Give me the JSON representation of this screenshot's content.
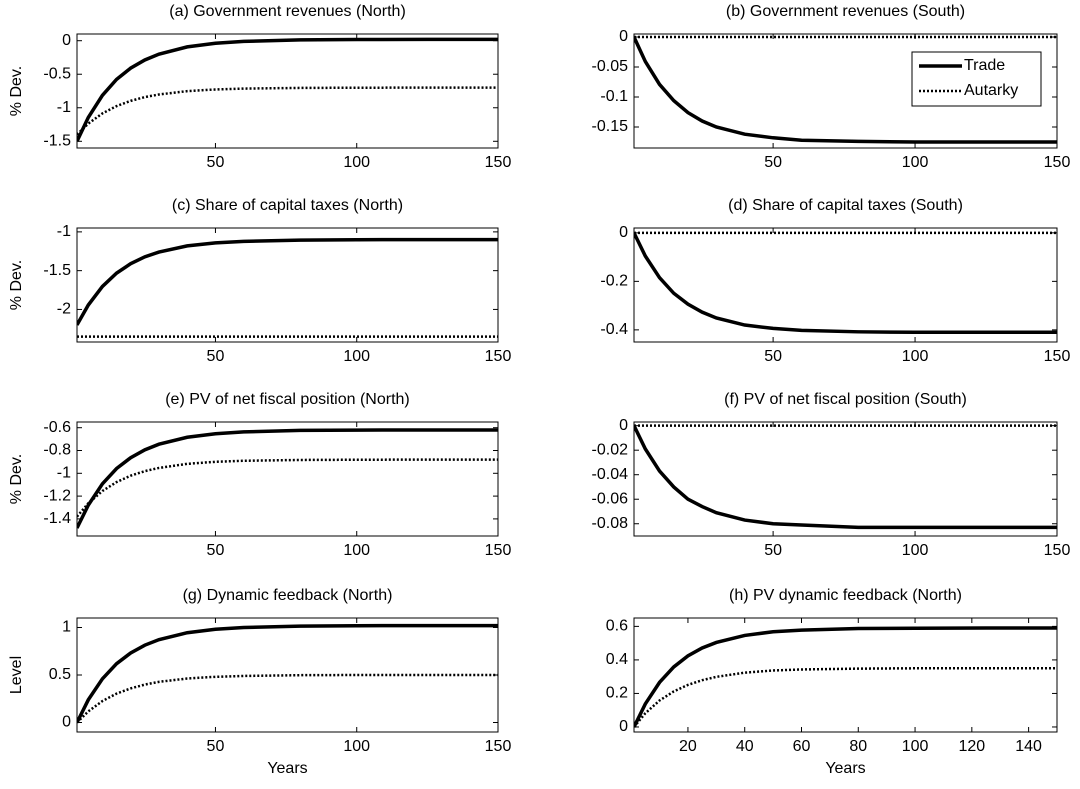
{
  "chart_data": [
    {
      "type": "line",
      "title": "(a) Government revenues (North)",
      "ylabel": "% Dev.",
      "x": [
        1,
        5,
        10,
        15,
        20,
        25,
        30,
        40,
        50,
        60,
        80,
        100,
        125,
        150
      ],
      "xlim": [
        1,
        150
      ],
      "xticks": [
        50,
        100,
        150
      ],
      "ylim": [
        -1.6,
        0.1
      ],
      "yticks": [
        0,
        -0.5,
        -1,
        -1.5
      ],
      "series": [
        {
          "name": "Trade",
          "color": "#000000",
          "style": "solid",
          "values": [
            -1.5,
            -1.144,
            -0.814,
            -0.577,
            -0.409,
            -0.287,
            -0.2,
            -0.092,
            -0.038,
            -0.01,
            0.012,
            0.018,
            0.02,
            0.02
          ]
        },
        {
          "name": "Autarky",
          "color": "#000000",
          "style": "dotted",
          "values": [
            -1.4,
            -1.236,
            -1.084,
            -0.975,
            -0.897,
            -0.841,
            -0.802,
            -0.752,
            -0.727,
            -0.714,
            -0.704,
            -0.701,
            -0.7,
            -0.7
          ]
        }
      ]
    },
    {
      "type": "line",
      "title": "(b) Government revenues (South)",
      "legend": "upper right",
      "x": [
        1,
        5,
        10,
        15,
        20,
        25,
        30,
        40,
        50,
        60,
        80,
        100,
        125,
        150
      ],
      "xlim": [
        1,
        150
      ],
      "xticks": [
        50,
        100,
        150
      ],
      "ylim": [
        -0.185,
        0.005
      ],
      "yticks": [
        0,
        -0.05,
        -0.1,
        -0.15
      ],
      "series": [
        {
          "name": "Trade",
          "color": "#000000",
          "style": "solid",
          "values": [
            0,
            -0.041,
            -0.079,
            -0.106,
            -0.126,
            -0.14,
            -0.15,
            -0.162,
            -0.168,
            -0.172,
            -0.174,
            -0.175,
            -0.175,
            -0.175
          ]
        },
        {
          "name": "Autarky",
          "color": "#000000",
          "style": "dotted",
          "values": [
            0,
            0,
            0,
            0,
            0,
            0,
            0,
            0,
            0,
            0,
            0,
            0,
            0,
            0
          ]
        }
      ]
    },
    {
      "type": "line",
      "title": "(c) Share of capital taxes (North)",
      "ylabel": "% Dev.",
      "x": [
        1,
        5,
        10,
        15,
        20,
        25,
        30,
        40,
        50,
        60,
        80,
        100,
        125,
        150
      ],
      "xlim": [
        1,
        150
      ],
      "xticks": [
        50,
        100,
        150
      ],
      "ylim": [
        -2.42,
        -0.95
      ],
      "yticks": [
        -1,
        -1.5,
        -2
      ],
      "series": [
        {
          "name": "Trade",
          "color": "#000000",
          "style": "solid",
          "values": [
            -2.2,
            -1.943,
            -1.704,
            -1.532,
            -1.41,
            -1.322,
            -1.26,
            -1.181,
            -1.142,
            -1.122,
            -1.106,
            -1.101,
            -1.1,
            -1.1
          ]
        },
        {
          "name": "Autarky",
          "color": "#000000",
          "style": "dotted",
          "values": [
            -2.35,
            -2.35,
            -2.35,
            -2.35,
            -2.35,
            -2.35,
            -2.35,
            -2.35,
            -2.35,
            -2.35,
            -2.35,
            -2.35,
            -2.35,
            -2.35
          ]
        }
      ]
    },
    {
      "type": "line",
      "title": "(d) Share of capital taxes (South)",
      "x": [
        1,
        5,
        10,
        15,
        20,
        25,
        30,
        40,
        50,
        60,
        80,
        100,
        125,
        150
      ],
      "xlim": [
        1,
        150
      ],
      "xticks": [
        50,
        100,
        150
      ],
      "ylim": [
        -0.45,
        0.02
      ],
      "yticks": [
        0,
        -0.2,
        -0.4
      ],
      "series": [
        {
          "name": "Trade",
          "color": "#000000",
          "style": "solid",
          "values": [
            0,
            -0.096,
            -0.185,
            -0.249,
            -0.294,
            -0.327,
            -0.351,
            -0.38,
            -0.394,
            -0.402,
            -0.408,
            -0.41,
            -0.41,
            -0.41
          ]
        },
        {
          "name": "Autarky",
          "color": "#000000",
          "style": "dotted",
          "values": [
            0,
            0,
            0,
            0,
            0,
            0,
            0,
            0,
            0,
            0,
            0,
            0,
            0,
            0
          ]
        }
      ]
    },
    {
      "type": "line",
      "title": "(e) PV of net fiscal position (North)",
      "ylabel": "% Dev.",
      "x": [
        1,
        5,
        10,
        15,
        20,
        25,
        30,
        40,
        50,
        60,
        80,
        100,
        125,
        150
      ],
      "xlim": [
        1,
        150
      ],
      "xticks": [
        50,
        100,
        150
      ],
      "ylim": [
        -1.55,
        -0.55
      ],
      "yticks": [
        -0.6,
        -0.8,
        -1,
        -1.2,
        -1.4
      ],
      "series": [
        {
          "name": "Trade",
          "color": "#000000",
          "style": "solid",
          "values": [
            -1.48,
            -1.279,
            -1.092,
            -0.958,
            -0.863,
            -0.794,
            -0.745,
            -0.684,
            -0.653,
            -0.637,
            -0.624,
            -0.621,
            -0.62,
            -0.62
          ]
        },
        {
          "name": "Autarky",
          "color": "#000000",
          "style": "dotted",
          "values": [
            -1.38,
            -1.263,
            -1.155,
            -1.077,
            -1.021,
            -0.981,
            -0.953,
            -0.917,
            -0.899,
            -0.89,
            -0.883,
            -0.881,
            -0.88,
            -0.88
          ]
        }
      ]
    },
    {
      "type": "line",
      "title": "(f) PV of net fiscal position (South)",
      "x": [
        1,
        5,
        10,
        15,
        20,
        25,
        30,
        40,
        50,
        60,
        80,
        100,
        125,
        150
      ],
      "xlim": [
        1,
        150
      ],
      "xticks": [
        50,
        100,
        150
      ],
      "ylim": [
        -0.09,
        0.003
      ],
      "yticks": [
        0,
        -0.02,
        -0.04,
        -0.06,
        -0.08
      ],
      "series": [
        {
          "name": "Trade",
          "color": "#000000",
          "style": "solid",
          "values": [
            0,
            -0.019,
            -0.037,
            -0.05,
            -0.06,
            -0.066,
            -0.071,
            -0.077,
            -0.08,
            -0.081,
            -0.083,
            -0.083,
            -0.083,
            -0.083
          ]
        },
        {
          "name": "Autarky",
          "color": "#000000",
          "style": "dotted",
          "values": [
            0,
            0,
            0,
            0,
            0,
            0,
            0,
            0,
            0,
            0,
            0,
            0,
            0,
            0
          ]
        }
      ]
    },
    {
      "type": "line",
      "title": "(g) Dynamic feedback (North)",
      "ylabel": "Level",
      "xlabel": "Years",
      "x": [
        1,
        5,
        10,
        15,
        20,
        25,
        30,
        40,
        50,
        60,
        80,
        100,
        125,
        150
      ],
      "xlim": [
        1,
        150
      ],
      "xticks": [
        50,
        100,
        150
      ],
      "ylim": [
        -0.1,
        1.1
      ],
      "yticks": [
        0,
        0.5,
        1
      ],
      "series": [
        {
          "name": "Trade",
          "color": "#000000",
          "style": "solid",
          "values": [
            0,
            0.239,
            0.46,
            0.619,
            0.732,
            0.814,
            0.872,
            0.945,
            0.981,
            1.0,
            1.015,
            1.019,
            1.02,
            1.02
          ]
        },
        {
          "name": "Autarky",
          "color": "#000000",
          "style": "dotted",
          "values": [
            0,
            0.117,
            0.226,
            0.304,
            0.359,
            0.399,
            0.428,
            0.463,
            0.481,
            0.49,
            0.498,
            0.5,
            0.5,
            0.5
          ]
        }
      ]
    },
    {
      "type": "line",
      "title": "(h) PV dynamic feedback (North)",
      "xlabel": "Years",
      "x": [
        1,
        5,
        10,
        15,
        20,
        25,
        30,
        40,
        50,
        60,
        80,
        100,
        125,
        150
      ],
      "xlim": [
        1,
        150
      ],
      "xticks": [
        20,
        40,
        60,
        80,
        100,
        120,
        140
      ],
      "ylim": [
        -0.03,
        0.65
      ],
      "yticks": [
        0,
        0.2,
        0.4,
        0.6
      ],
      "series": [
        {
          "name": "Trade",
          "color": "#000000",
          "style": "solid",
          "values": [
            0,
            0.138,
            0.266,
            0.358,
            0.424,
            0.471,
            0.504,
            0.546,
            0.568,
            0.578,
            0.587,
            0.589,
            0.59,
            0.59
          ]
        },
        {
          "name": "Autarky",
          "color": "#000000",
          "style": "dotted",
          "values": [
            0,
            0.082,
            0.158,
            0.212,
            0.251,
            0.279,
            0.299,
            0.324,
            0.337,
            0.343,
            0.348,
            0.35,
            0.35,
            0.35
          ]
        }
      ]
    }
  ]
}
